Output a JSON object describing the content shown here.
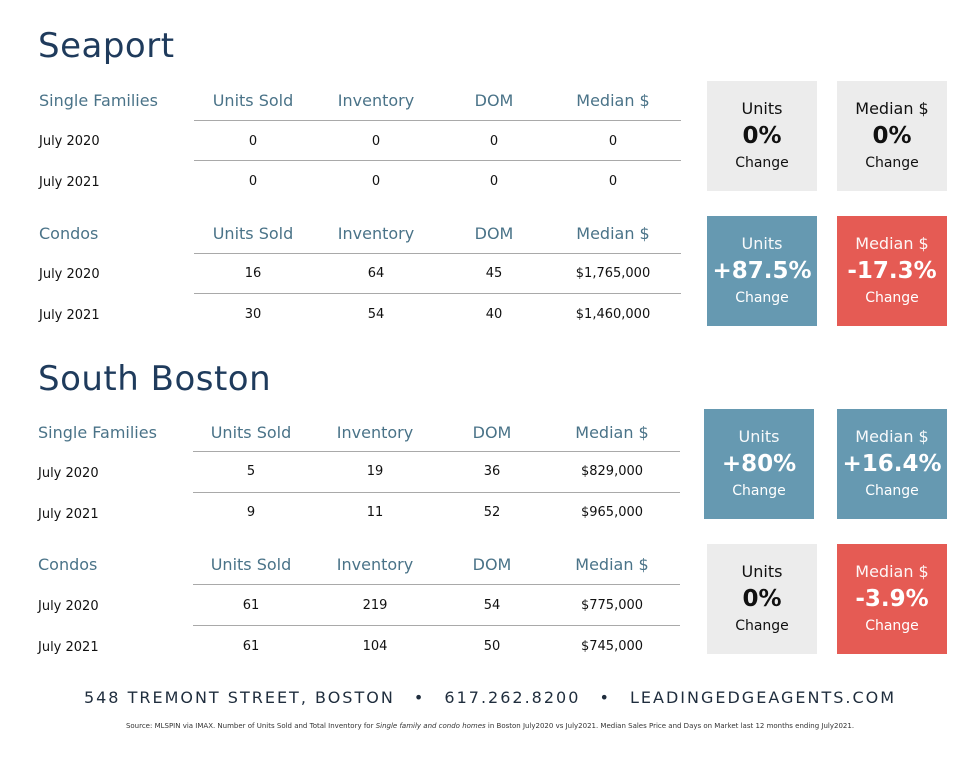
{
  "sections": [
    {
      "title": "Seaport",
      "tables": [
        {
          "type": "Single Families",
          "headers": [
            "Units Sold",
            "Inventory",
            "DOM",
            "Median $"
          ],
          "rows": [
            {
              "label": "July 2020",
              "units_sold": "0",
              "inventory": "0",
              "dom": "0",
              "median": "0"
            },
            {
              "label": "July 2021",
              "units_sold": "0",
              "inventory": "0",
              "dom": "0",
              "median": "0"
            }
          ],
          "boxes": [
            {
              "label": "Units",
              "value": "0%",
              "change": "Change",
              "color": "#ececec"
            },
            {
              "label": "Median $",
              "value": "0%",
              "change": "Change",
              "color": "#ececec"
            }
          ]
        },
        {
          "type": "Condos",
          "headers": [
            "Units Sold",
            "Inventory",
            "DOM",
            "Median $"
          ],
          "rows": [
            {
              "label": "July 2020",
              "units_sold": "16",
              "inventory": "64",
              "dom": "45",
              "median": "$1,765,000"
            },
            {
              "label": "July 2021",
              "units_sold": "30",
              "inventory": "54",
              "dom": "40",
              "median": "$1,460,000"
            }
          ],
          "boxes": [
            {
              "label": "Units",
              "value": "+87.5%",
              "change": "Change",
              "color": "#6699b1"
            },
            {
              "label": "Median $",
              "value": "-17.3%",
              "change": "Change",
              "color": "#e55b54"
            }
          ]
        }
      ]
    },
    {
      "title": "South Boston",
      "tables": [
        {
          "type": "Single Families",
          "headers": [
            "Units Sold",
            "Inventory",
            "DOM",
            "Median $"
          ],
          "rows": [
            {
              "label": "July 2020",
              "units_sold": "5",
              "inventory": "19",
              "dom": "36",
              "median": "$829,000"
            },
            {
              "label": "July 2021",
              "units_sold": "9",
              "inventory": "11",
              "dom": "52",
              "median": "$965,000"
            }
          ],
          "boxes": [
            {
              "label": "Units",
              "value": "+80%",
              "change": "Change",
              "color": "#6699b1"
            },
            {
              "label": "Median $",
              "value": "+16.4%",
              "change": "Change",
              "color": "#6699b1"
            }
          ]
        },
        {
          "type": "Condos",
          "headers": [
            "Units Sold",
            "Inventory",
            "DOM",
            "Median $"
          ],
          "rows": [
            {
              "label": "July 2020",
              "units_sold": "61",
              "inventory": "219",
              "dom": "54",
              "median": "$775,000"
            },
            {
              "label": "July 2021",
              "units_sold": "61",
              "inventory": "104",
              "dom": "50",
              "median": "$745,000"
            }
          ],
          "boxes": [
            {
              "label": "Units",
              "value": "0%",
              "change": "Change",
              "color": "#ececec"
            },
            {
              "label": "Median $",
              "value": "-3.9%",
              "change": "Change",
              "color": "#e55b54"
            }
          ]
        }
      ]
    }
  ],
  "footer": {
    "address": "548 TREMONT STREET, BOSTON",
    "separator": "•",
    "phone": "617.262.8200",
    "website": "LEADINGEDGEAGENTS.COM"
  },
  "source": {
    "prefix": "Source: MLSPIN via IMAX. Number of Units Sold and Total Inventory for ",
    "italic": "Single family and condo homes",
    "suffix": " in Boston July2020 vs July2021. Median Sales Price and Days on Market last 12 months ending July2021."
  }
}
